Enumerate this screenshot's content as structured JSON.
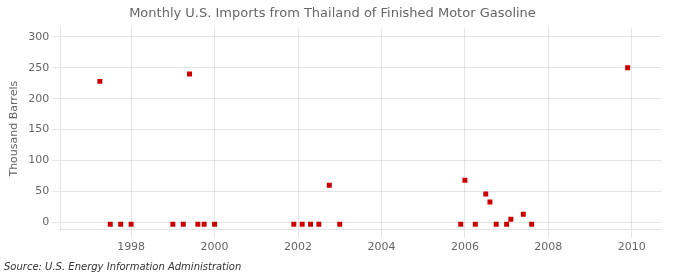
{
  "chart_data": {
    "type": "scatter",
    "title": "Monthly U.S. Imports from Thailand of Finished Motor Gasoline",
    "ylabel": "Thousand Barrels",
    "annotations": [
      "Source: U.S. Energy Information Administration"
    ],
    "x": [
      1997.25,
      1997.5,
      1997.75,
      1998.0,
      1999.0,
      1999.25,
      1999.4,
      1999.6,
      1999.75,
      2000.0,
      2001.9,
      2002.1,
      2002.3,
      2002.5,
      2002.75,
      2003.0,
      2005.9,
      2006.0,
      2006.25,
      2006.5,
      2006.6,
      2006.75,
      2007.0,
      2007.1,
      2007.4,
      2007.6,
      2009.9
    ],
    "values": [
      228,
      -3,
      -3,
      -3,
      -3,
      -3,
      240,
      -3,
      -3,
      -3,
      -3,
      -3,
      -3,
      -3,
      60,
      -3,
      -3,
      68,
      -3,
      46,
      33,
      -3,
      -3,
      5,
      13,
      -3,
      250
    ],
    "color": "#cc0000",
    "marker": "square",
    "xlim": [
      1996.3,
      2010.7
    ],
    "xticks": [
      1998,
      2000,
      2002,
      2004,
      2006,
      2008,
      2010
    ],
    "ylim": [
      -12,
      315
    ],
    "yticks": [
      0,
      50,
      100,
      150,
      200,
      250,
      300
    ],
    "grid": true
  }
}
